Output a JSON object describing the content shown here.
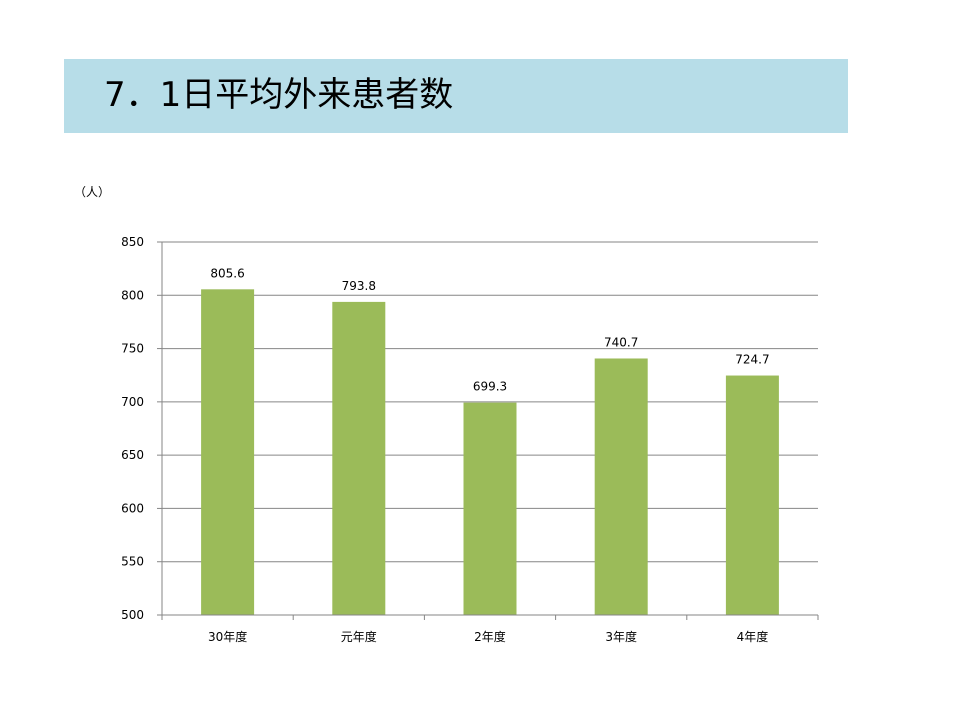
{
  "slide": {
    "title": "7．1日平均外来患者数"
  },
  "chart_data": {
    "type": "bar",
    "unit_label": "（人）",
    "categories": [
      "30年度",
      "元年度",
      "2年度",
      "3年度",
      "4年度"
    ],
    "values": [
      805.6,
      793.8,
      699.3,
      740.7,
      724.7
    ],
    "data_labels": [
      "805.6",
      "793.8",
      "699.3",
      "740.7",
      "724.7"
    ],
    "ylim": [
      500,
      850
    ],
    "yticks": [
      500,
      550,
      600,
      650,
      700,
      750,
      800,
      850
    ],
    "grid": true,
    "legend": "none",
    "bar_color": "#9bbb59",
    "grid_color": "#868686"
  }
}
